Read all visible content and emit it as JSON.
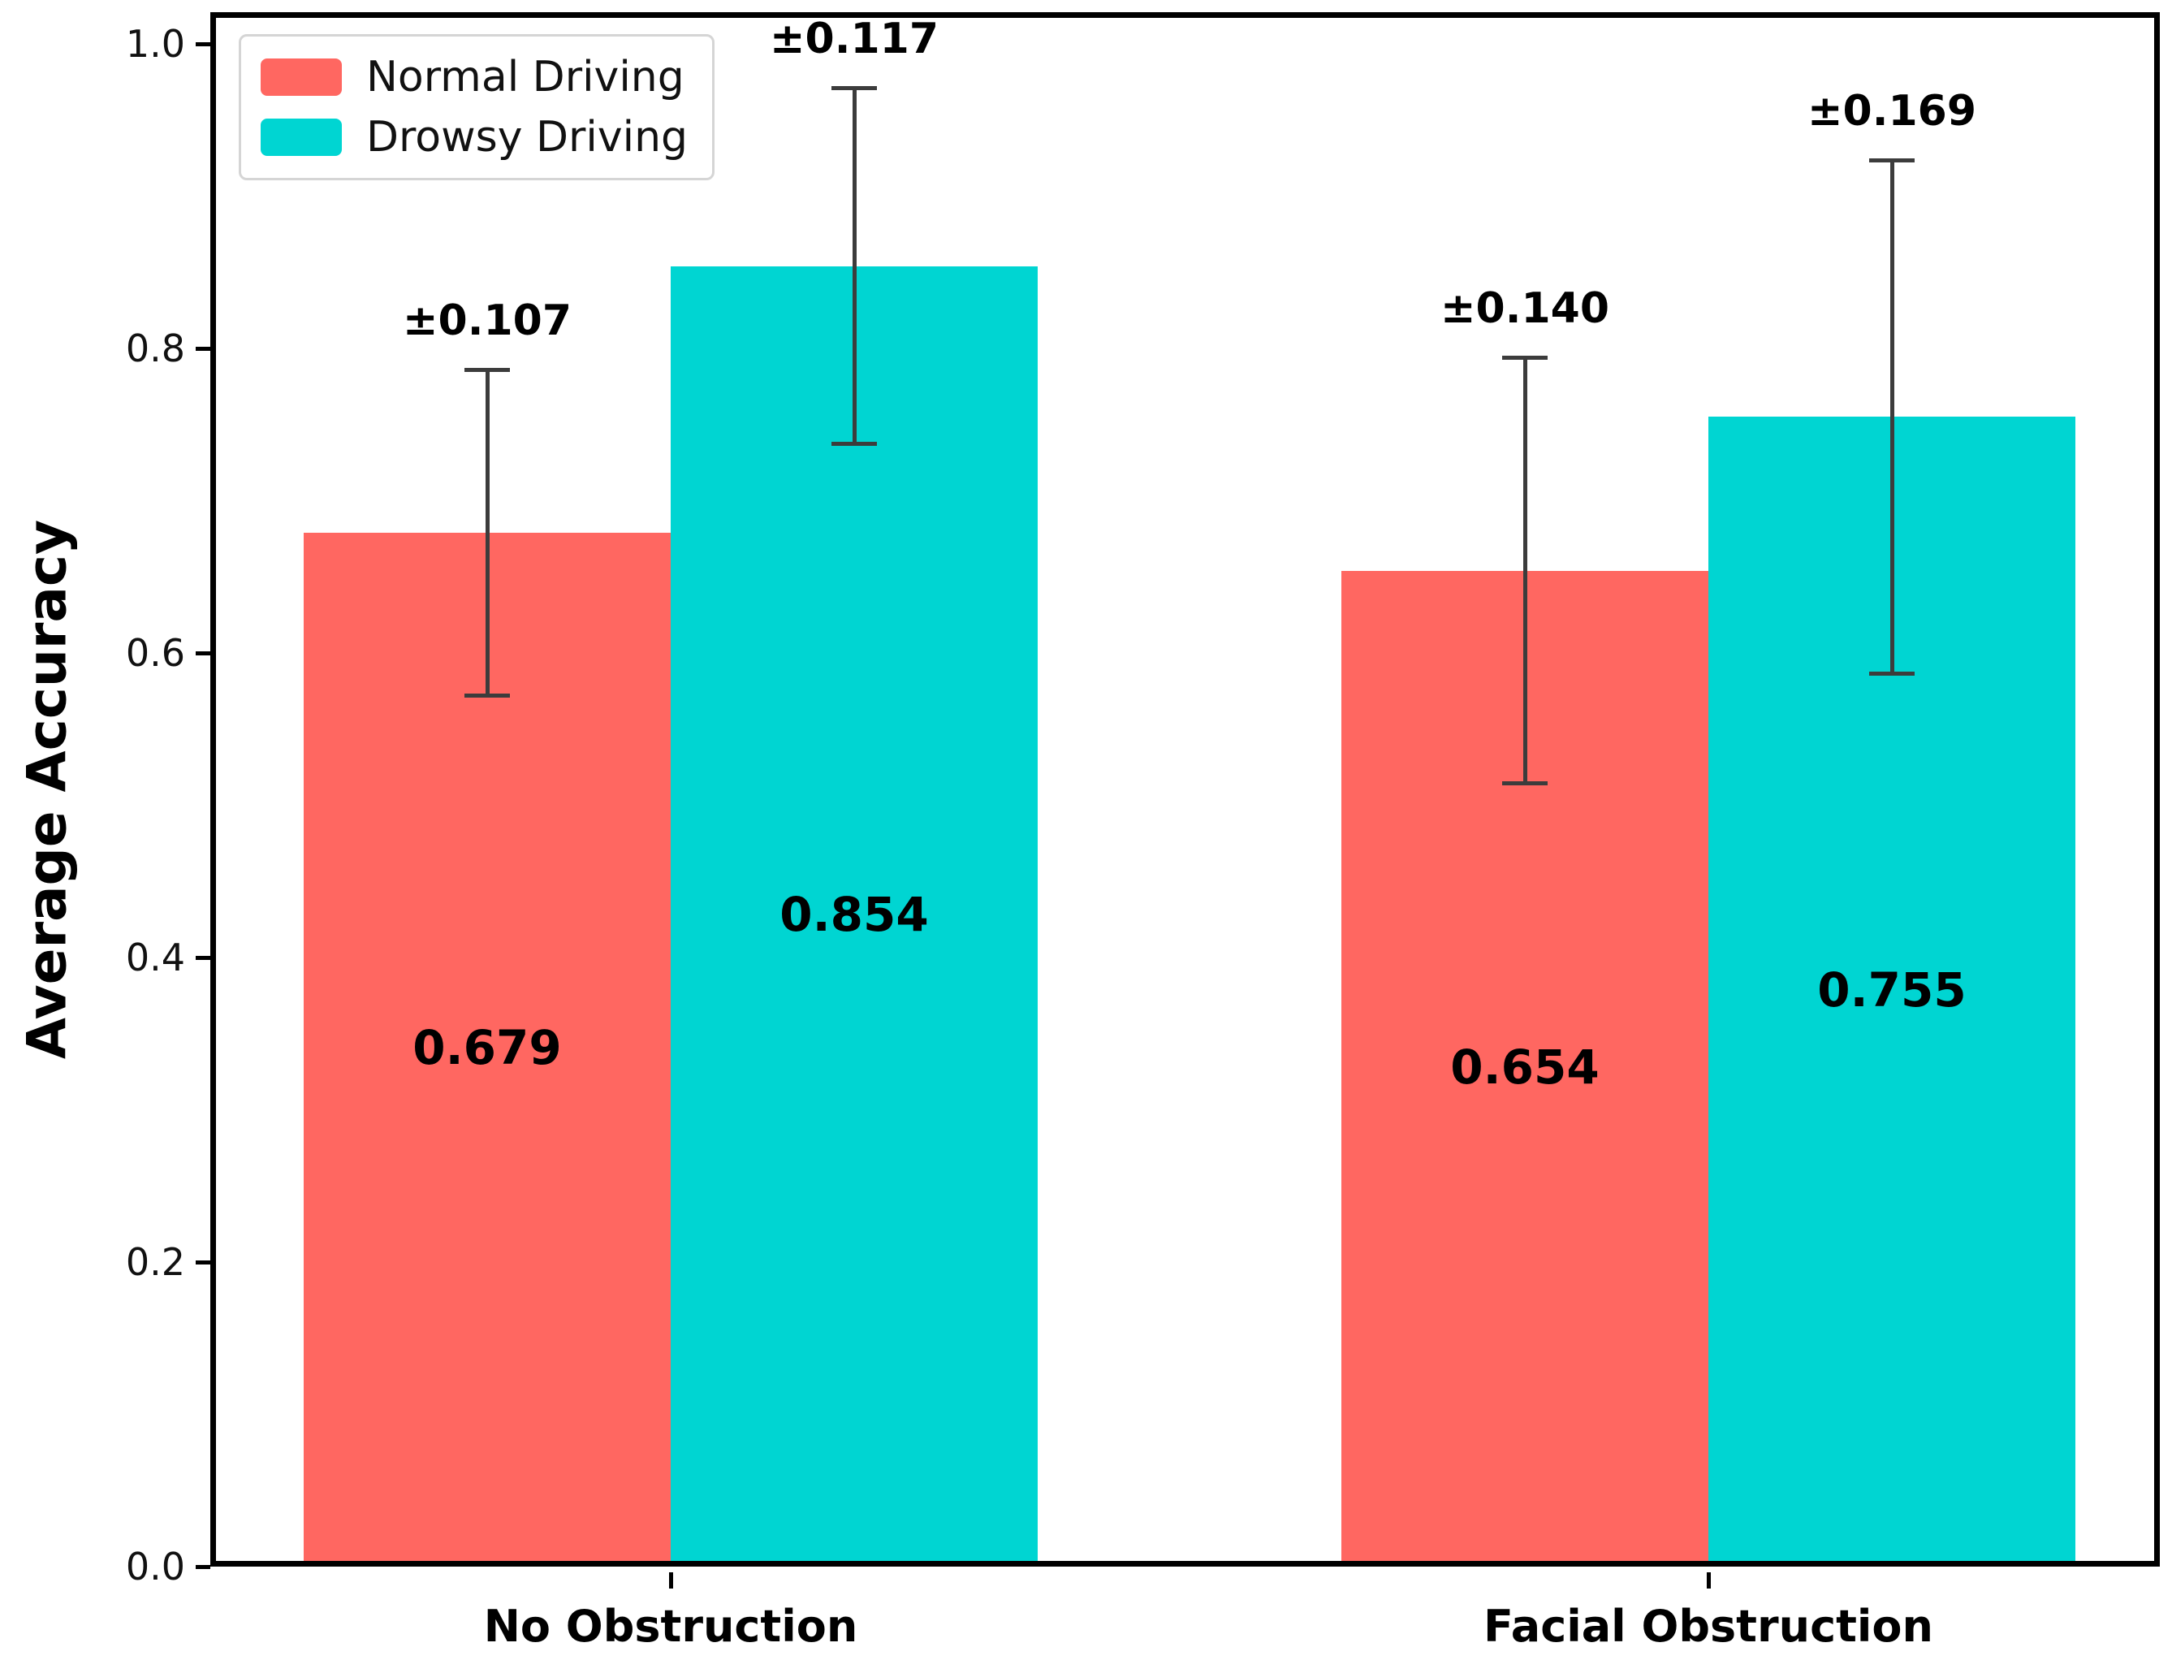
{
  "chart_data": {
    "type": "bar",
    "title": "",
    "xlabel": "",
    "ylabel": "Average Accuracy",
    "categories": [
      "No Obstruction",
      "Facial Obstruction"
    ],
    "series": [
      {
        "name": "Normal Driving",
        "color": "#FF6761",
        "values": [
          0.679,
          0.654
        ],
        "errors": [
          0.107,
          0.14
        ],
        "value_labels": [
          "0.679",
          "0.654"
        ],
        "error_labels": [
          "±0.107",
          "±0.140"
        ]
      },
      {
        "name": "Drowsy Driving",
        "color": "#00D5D2",
        "values": [
          0.854,
          0.755
        ],
        "errors": [
          0.117,
          0.169
        ],
        "value_labels": [
          "0.854",
          "0.755"
        ],
        "error_labels": [
          "±0.117",
          "±0.169"
        ]
      }
    ],
    "ylim": [
      0.0,
      1.0
    ],
    "yticks": [
      "0.0",
      "0.2",
      "0.4",
      "0.6",
      "0.8",
      "1.0"
    ],
    "legend_position": "upper left",
    "grid": false,
    "error_bar_color": "#3c3c3c",
    "bar_edge": "none"
  }
}
